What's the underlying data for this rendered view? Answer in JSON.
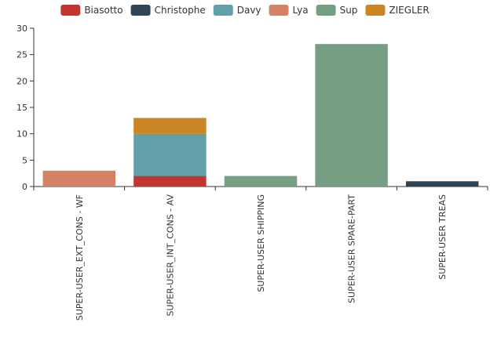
{
  "chart_data": {
    "type": "bar",
    "stacked": true,
    "categories": [
      "SUPER-USER_EXT_CONS - WF",
      "SUPER-USER_INT_CONS - AV",
      "SUPER-USER SHIPPING",
      "SUPER-USER SPARE-PART",
      "SUPER-USER TREAS"
    ],
    "series": [
      {
        "name": "Biasotto",
        "color": "#c23531",
        "values": [
          0,
          2,
          0,
          0,
          0
        ]
      },
      {
        "name": "Christophe",
        "color": "#2f4554",
        "values": [
          0,
          0,
          0,
          0,
          1
        ]
      },
      {
        "name": "Davy",
        "color": "#61a0a8",
        "values": [
          0,
          8,
          0,
          0,
          0
        ]
      },
      {
        "name": "Lya",
        "color": "#d48265",
        "values": [
          3,
          0,
          0,
          0,
          0
        ]
      },
      {
        "name": "Sup",
        "color": "#749f83",
        "values": [
          0,
          0,
          2,
          27,
          0
        ]
      },
      {
        "name": "ZIEGLER",
        "color": "#ca8622",
        "values": [
          0,
          3,
          0,
          0,
          0
        ]
      }
    ],
    "ylim": [
      0,
      30
    ],
    "yticks": [
      0,
      5,
      10,
      15,
      20,
      25,
      30
    ],
    "legend_position": "top-center",
    "grid": false
  }
}
